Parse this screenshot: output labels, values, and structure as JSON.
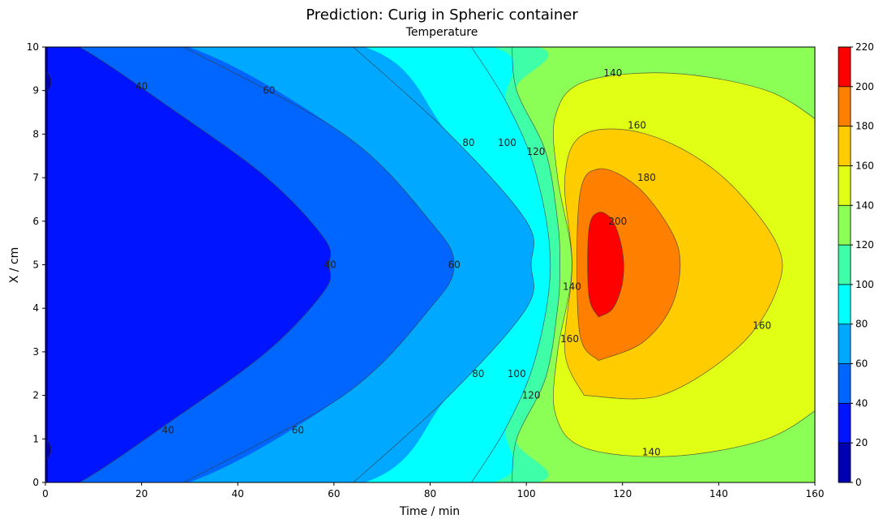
{
  "chart_data": {
    "type": "heatmap",
    "title": "Prediction: Curig in Spheric container",
    "subtitle": "Temperature",
    "xlabel": "Time / min",
    "ylabel": "X / cm",
    "xlim": [
      0,
      160
    ],
    "ylim": [
      0,
      10
    ],
    "x_ticks": [
      0,
      20,
      40,
      60,
      80,
      100,
      120,
      140,
      160
    ],
    "y_ticks": [
      0,
      1,
      2,
      3,
      4,
      5,
      6,
      7,
      8,
      9,
      10
    ],
    "color_scale": {
      "levels": [
        0,
        20,
        40,
        60,
        80,
        100,
        120,
        140,
        160,
        180,
        200,
        220
      ],
      "colors": [
        "#0000b2",
        "#0014ff",
        "#0066ff",
        "#00a8ff",
        "#00ffff",
        "#3effa8",
        "#8cff56",
        "#e0ff14",
        "#ffcc00",
        "#ff7f00",
        "#ff0000"
      ],
      "tick_labels": [
        "0",
        "20",
        "40",
        "60",
        "80",
        "100",
        "120",
        "140",
        "160",
        "180",
        "200",
        "220"
      ]
    },
    "contours": [
      {
        "level": 40,
        "label": "40",
        "points": [
          [
            0,
            -0.1
          ],
          [
            7,
            0
          ],
          [
            26,
            1.4
          ],
          [
            46,
            3
          ],
          [
            58,
            4.4
          ],
          [
            59,
            5
          ],
          [
            58,
            5.6
          ],
          [
            46,
            7
          ],
          [
            26,
            8.6
          ],
          [
            7,
            10
          ],
          [
            0,
            10.1
          ]
        ],
        "labels_at": [
          [
            20,
            9.1
          ],
          [
            59.2,
            5
          ],
          [
            25.5,
            1.2
          ]
        ]
      },
      {
        "level": 60,
        "label": "60",
        "points": [
          [
            27,
            -0.1
          ],
          [
            62,
            2
          ],
          [
            80,
            4
          ],
          [
            85,
            5
          ],
          [
            80,
            6
          ],
          [
            62,
            8
          ],
          [
            27,
            10.1
          ]
        ],
        "labels_at": [
          [
            46.5,
            9.0
          ],
          [
            85,
            5
          ],
          [
            52.5,
            1.2
          ]
        ]
      },
      {
        "level": 80,
        "label": "80",
        "points": [
          [
            63,
            -0.1
          ],
          [
            84,
            2
          ],
          [
            100,
            4
          ],
          [
            101,
            5
          ],
          [
            100,
            6
          ],
          [
            84,
            8
          ],
          [
            63,
            10.1
          ]
        ],
        "labels_at": [
          [
            88,
            7.8
          ],
          [
            90,
            2.5
          ]
        ]
      },
      {
        "level": 100,
        "label": "100",
        "points": [
          [
            88,
            -0.1
          ],
          [
            96,
            1.3
          ],
          [
            102,
            2.9
          ],
          [
            105,
            5
          ],
          [
            102,
            7.1
          ],
          [
            96,
            8.7
          ],
          [
            88,
            10.1
          ]
        ],
        "labels_at": [
          [
            96,
            7.8
          ],
          [
            98,
            2.5
          ]
        ]
      },
      {
        "level": 120,
        "label": "120",
        "points": [
          [
            97,
            -0.1
          ],
          [
            98,
            1.0
          ],
          [
            104,
            2.4
          ],
          [
            106.5,
            4
          ],
          [
            107,
            5
          ],
          [
            106.5,
            6
          ],
          [
            104,
            7.6
          ],
          [
            98,
            9.0
          ],
          [
            97,
            10.1
          ]
        ],
        "labels_at": [
          [
            102,
            7.6
          ],
          [
            101,
            2
          ]
        ]
      },
      {
        "level": 140,
        "label": "140",
        "points": [
          [
            162,
            1.8
          ],
          [
            150,
            1.0
          ],
          [
            130,
            0.6
          ],
          [
            112,
            0.8
          ],
          [
            106,
            1.6
          ],
          [
            106.5,
            3
          ],
          [
            109.5,
            5
          ],
          [
            106.5,
            7
          ],
          [
            106,
            8.4
          ],
          [
            112,
            9.2
          ],
          [
            130,
            9.4
          ],
          [
            150,
            9.0
          ],
          [
            162,
            8.2
          ]
        ],
        "labels_at": [
          [
            118,
            9.4
          ],
          [
            126,
            0.7
          ],
          [
            109.5,
            4.5
          ]
        ]
      },
      {
        "level": 160,
        "label": "160",
        "points": [
          [
            112,
            2.0
          ],
          [
            108,
            3
          ],
          [
            109.5,
            5
          ],
          [
            108,
            7
          ],
          [
            112,
            8.0
          ],
          [
            125,
            8.0
          ],
          [
            140,
            7.1
          ],
          [
            152,
            5.5
          ],
          [
            152,
            4.4
          ],
          [
            144,
            3.1
          ],
          [
            128,
            2.0
          ],
          [
            112,
            2.0
          ]
        ],
        "labels_at": [
          [
            123,
            8.2
          ],
          [
            109,
            3.3
          ],
          [
            149,
            3.6
          ]
        ]
      },
      {
        "level": 180,
        "label": "180",
        "points": [
          [
            115,
            2.8
          ],
          [
            111,
            3.5
          ],
          [
            111,
            6.5
          ],
          [
            115,
            7.2
          ],
          [
            123,
            6.8
          ],
          [
            130,
            5.8
          ],
          [
            132,
            5.0
          ],
          [
            130,
            4.0
          ],
          [
            124,
            3.2
          ],
          [
            115,
            2.8
          ]
        ],
        "labels_at": [
          [
            125,
            7.0
          ]
        ]
      },
      {
        "level": 200,
        "label": "200",
        "points": [
          [
            115,
            3.8
          ],
          [
            113,
            4.3
          ],
          [
            113,
            5.8
          ],
          [
            115,
            6.2
          ],
          [
            118,
            6.0
          ],
          [
            120,
            5.3
          ],
          [
            120,
            4.6
          ],
          [
            118,
            4.0
          ],
          [
            115,
            3.8
          ]
        ],
        "labels_at": [
          [
            119,
            6.0
          ]
        ]
      }
    ]
  }
}
